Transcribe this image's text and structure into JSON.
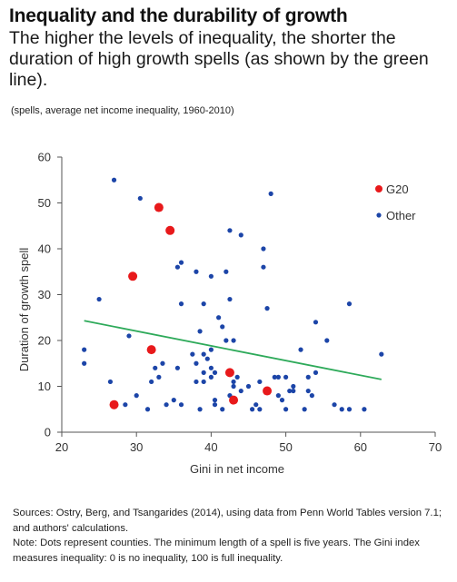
{
  "header": {
    "title": "Inequality and the durability of growth",
    "subtitle": "The higher the levels of inequality, the shorter the duration of high growth spells (as shown by the green line).",
    "note": "(spells, average net income inequality, 1960-2010)"
  },
  "footer": {
    "sources": "Sources: Ostry, Berg, and Tsangarides (2014), using data from Penn World Tables version 7.1; and authors' calculations.",
    "note": "Note: Dots represent counties. The minimum length of a spell is five years. The Gini index measures inequality: 0 is no inequality, 100 is full inequality."
  },
  "chart_data": {
    "type": "scatter",
    "xlabel": "Gini in net income",
    "ylabel": "Duration of growth spell",
    "xlim": [
      20,
      70
    ],
    "ylim": [
      0,
      60
    ],
    "xticks": [
      20,
      30,
      40,
      50,
      60,
      70
    ],
    "yticks": [
      0,
      10,
      20,
      30,
      40,
      50,
      60
    ],
    "grid": false,
    "legend_position": "top-right",
    "trend_line": {
      "x": [
        23,
        62.8
      ],
      "y": [
        24.3,
        11.5
      ],
      "color": "#2eaa5a"
    },
    "series": [
      {
        "name": "G20",
        "color": "#e8191b",
        "marker_size": "large",
        "points": [
          [
            27,
            6
          ],
          [
            29.5,
            34
          ],
          [
            32,
            18
          ],
          [
            33,
            49
          ],
          [
            34.5,
            44
          ],
          [
            42.5,
            13
          ],
          [
            43,
            7
          ],
          [
            47.5,
            9
          ]
        ]
      },
      {
        "name": "Other",
        "color": "#1c45a8",
        "marker_size": "small",
        "points": [
          [
            23,
            18
          ],
          [
            23,
            15
          ],
          [
            25,
            29
          ],
          [
            26.5,
            11
          ],
          [
            27,
            55
          ],
          [
            28.5,
            6
          ],
          [
            29,
            21
          ],
          [
            30,
            8
          ],
          [
            30.5,
            51
          ],
          [
            31.5,
            5
          ],
          [
            32,
            11
          ],
          [
            32.5,
            14
          ],
          [
            33,
            12
          ],
          [
            33.5,
            15
          ],
          [
            34,
            6
          ],
          [
            35,
            7
          ],
          [
            35.5,
            36
          ],
          [
            35.5,
            14
          ],
          [
            36,
            37
          ],
          [
            36,
            28
          ],
          [
            36,
            6
          ],
          [
            37.5,
            17
          ],
          [
            38,
            15
          ],
          [
            38,
            35
          ],
          [
            38,
            11
          ],
          [
            38.5,
            22
          ],
          [
            38.5,
            5
          ],
          [
            39,
            28
          ],
          [
            39,
            13
          ],
          [
            39,
            11
          ],
          [
            39,
            17
          ],
          [
            39.5,
            16
          ],
          [
            40,
            12
          ],
          [
            40,
            34
          ],
          [
            40,
            18
          ],
          [
            40,
            14
          ],
          [
            40.5,
            6
          ],
          [
            40.5,
            7
          ],
          [
            40.5,
            13
          ],
          [
            41,
            25
          ],
          [
            41.5,
            23
          ],
          [
            41.5,
            5
          ],
          [
            42,
            35
          ],
          [
            42,
            20
          ],
          [
            42.5,
            8
          ],
          [
            42.5,
            29
          ],
          [
            42.5,
            44
          ],
          [
            43,
            20
          ],
          [
            43,
            11
          ],
          [
            43,
            10
          ],
          [
            43.5,
            12
          ],
          [
            44,
            43
          ],
          [
            44,
            9
          ],
          [
            45,
            10
          ],
          [
            45.5,
            5
          ],
          [
            46,
            6
          ],
          [
            46.5,
            11
          ],
          [
            46.5,
            5
          ],
          [
            47,
            40
          ],
          [
            47,
            36
          ],
          [
            47.5,
            27
          ],
          [
            47.5,
            9
          ],
          [
            48,
            52
          ],
          [
            48.5,
            12
          ],
          [
            49,
            12
          ],
          [
            49,
            8
          ],
          [
            49.5,
            7
          ],
          [
            50,
            12
          ],
          [
            50,
            5
          ],
          [
            50.5,
            9
          ],
          [
            51,
            9
          ],
          [
            51,
            10
          ],
          [
            52,
            18
          ],
          [
            52.5,
            5
          ],
          [
            53,
            9
          ],
          [
            53,
            12
          ],
          [
            53.5,
            8
          ],
          [
            54,
            13
          ],
          [
            54,
            24
          ],
          [
            55.5,
            20
          ],
          [
            56.5,
            6
          ],
          [
            57.5,
            5
          ],
          [
            58.5,
            28
          ],
          [
            58.5,
            5
          ],
          [
            60.5,
            5
          ],
          [
            62.8,
            17
          ]
        ]
      }
    ]
  }
}
